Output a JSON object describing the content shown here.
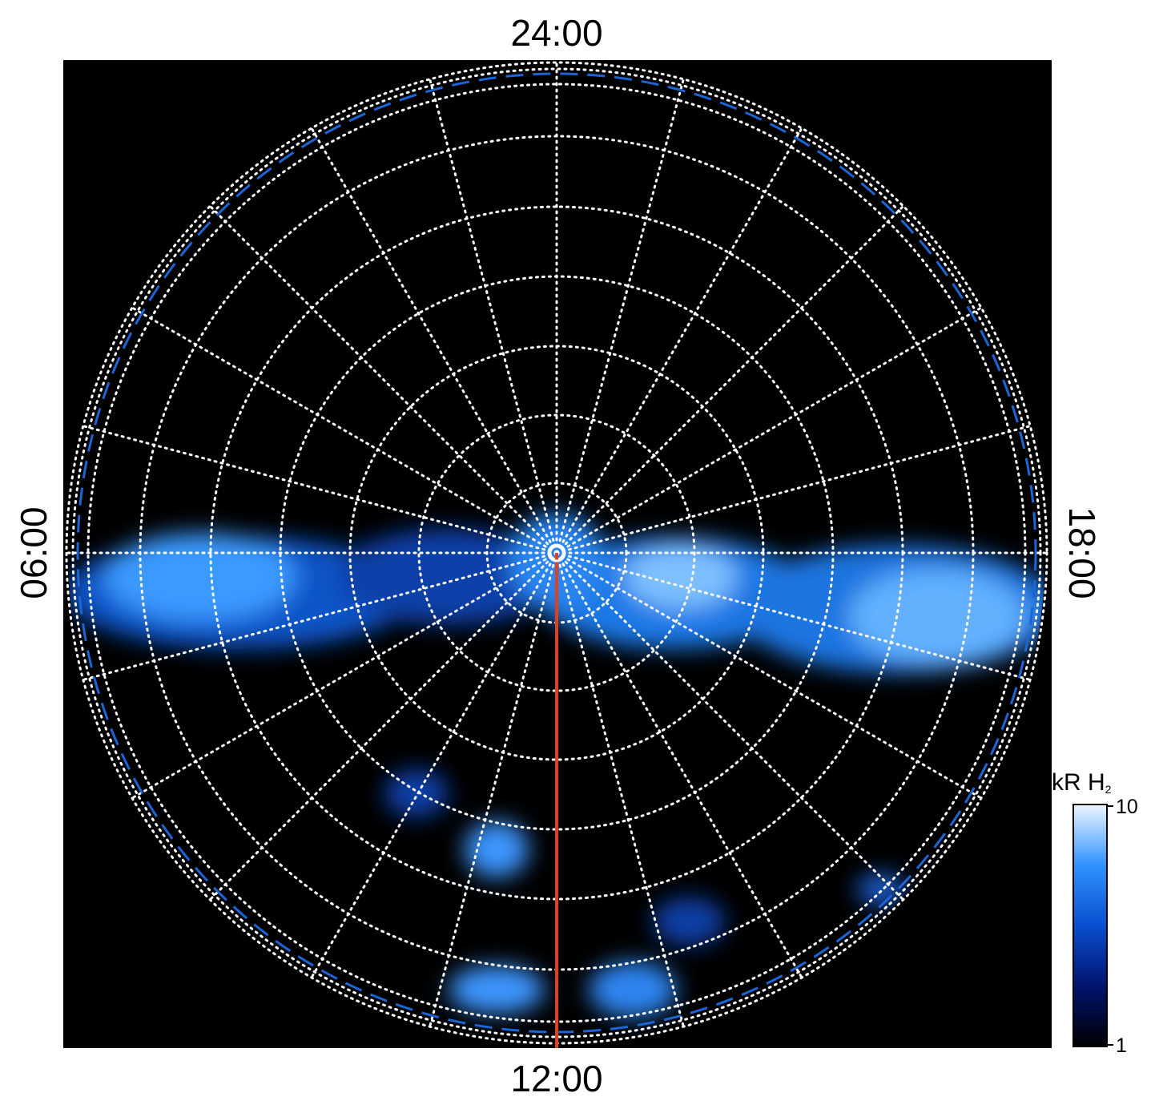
{
  "labels": {
    "top": "24:00",
    "bottom": "12:00",
    "left": "06:00",
    "right": "18:00"
  },
  "colorbar": {
    "title": "kR H",
    "subscript": "2",
    "range": [
      1,
      10
    ],
    "ticks": [
      1,
      10
    ],
    "scale": "log",
    "colors": [
      "#000000",
      "#00136e",
      "#0a4fd0",
      "#2f93ff",
      "#eef6ff"
    ]
  }
}
